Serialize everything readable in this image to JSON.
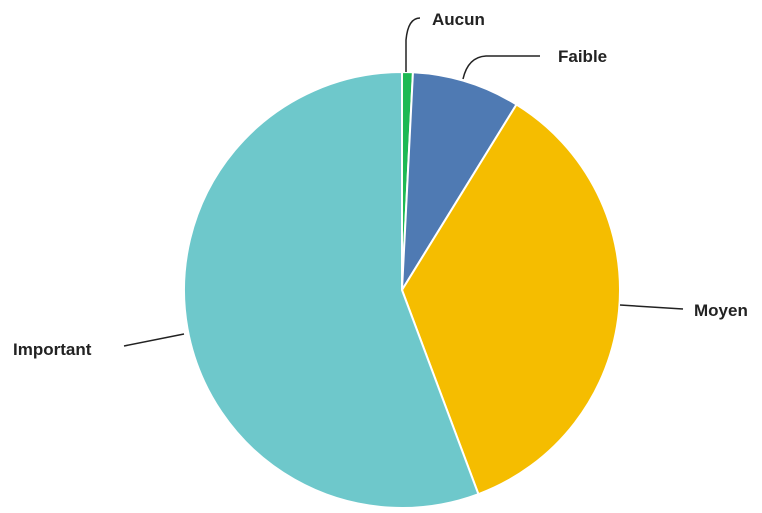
{
  "chart_data": {
    "type": "pie",
    "title": "",
    "slices": [
      {
        "label": "Aucun",
        "value": 0.8,
        "color": "#1DB954"
      },
      {
        "label": "Faible",
        "value": 8,
        "color": "#4F7AB3"
      },
      {
        "label": "Moyen",
        "value": 35.5,
        "color": "#F5BD00"
      },
      {
        "label": "Important",
        "value": 55.7,
        "color": "#6EC8CB"
      }
    ],
    "start_angle_deg": 0,
    "direction": "clockwise",
    "legend": "none",
    "labels": "outside-with-leader-lines"
  }
}
